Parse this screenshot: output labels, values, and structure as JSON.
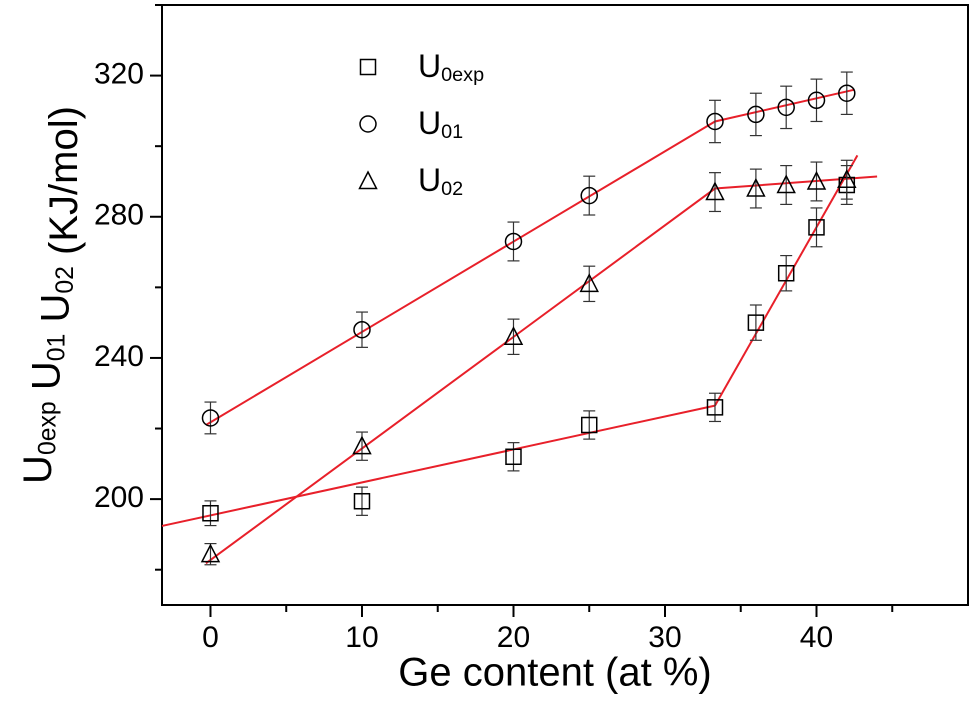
{
  "chart_data": {
    "type": "scatter",
    "xlabel": "Ge content (at %)",
    "ylabel": "U0exp U01 U02 (KJ/mol)",
    "xlim": [
      -3.2,
      50
    ],
    "ylim": [
      170,
      340
    ],
    "xticks": [
      0,
      10,
      20,
      30,
      40
    ],
    "yticks": [
      200,
      240,
      280,
      320
    ],
    "xminor": [
      5,
      15,
      25,
      35,
      45
    ],
    "yminor": [
      180,
      220,
      260,
      300,
      340
    ],
    "series": [
      {
        "name": "U0exp",
        "marker": "square",
        "color": "#000000",
        "x": [
          0,
          10,
          20,
          25,
          33.3,
          36,
          38,
          40,
          42
        ],
        "values": [
          196,
          199.4,
          212,
          221,
          226,
          250,
          264,
          277,
          289
        ],
        "errors": [
          3.5,
          4,
          4,
          4,
          4,
          5,
          5,
          5.5,
          5.5
        ]
      },
      {
        "name": "U01",
        "marker": "circle",
        "color": "#000000",
        "x": [
          0,
          10,
          20,
          25,
          33.3,
          36,
          38,
          40,
          42
        ],
        "values": [
          223,
          248,
          273,
          286,
          307,
          309,
          311,
          313,
          315
        ],
        "errors": [
          4.5,
          5,
          5.5,
          5.5,
          6,
          6,
          6,
          6,
          6
        ]
      },
      {
        "name": "U02",
        "marker": "triangle",
        "color": "#000000",
        "x": [
          0,
          10,
          20,
          25,
          33.3,
          36,
          38,
          40,
          42
        ],
        "values": [
          184.4,
          215,
          246,
          261,
          287,
          288,
          289,
          290,
          290.5
        ],
        "errors": [
          3,
          4,
          5,
          5,
          5.5,
          5.5,
          5.5,
          5.5,
          5.5
        ]
      }
    ],
    "fits": [
      {
        "color": "#e8202a",
        "x": [
          -3.2,
          33.3
        ],
        "values": [
          192.4,
          226.5
        ]
      },
      {
        "color": "#e8202a",
        "x": [
          33.3,
          42.7
        ],
        "values": [
          226.5,
          297.4
        ]
      },
      {
        "color": "#e8202a",
        "x": [
          -0.3,
          33.3,
          42.5
        ],
        "values": [
          221,
          307,
          316
        ]
      },
      {
        "color": "#e8202a",
        "x": [
          -0.3,
          33.3,
          44
        ],
        "values": [
          181.8,
          288,
          291.4
        ]
      }
    ]
  }
}
